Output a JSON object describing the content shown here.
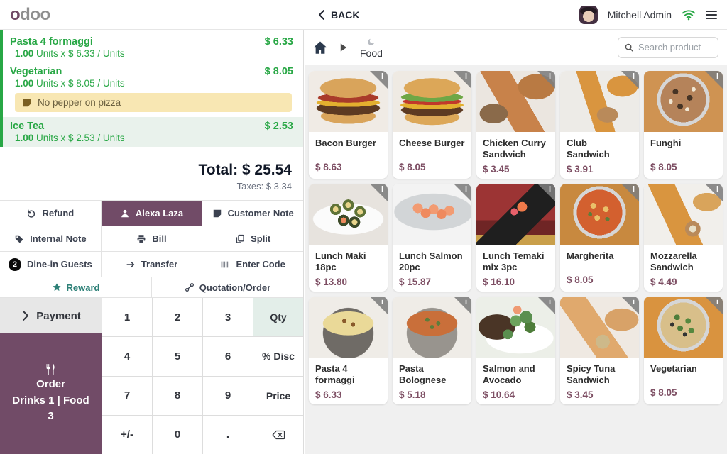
{
  "colors": {
    "brand_purple": "#714B67",
    "success_green": "#28a745",
    "reward_teal": "#2d8077",
    "price_maroon": "#7d4e63",
    "note_bg": "#f8e7b3"
  },
  "topbar": {
    "logo_first": "o",
    "logo_rest": "doo",
    "back_label": "BACK",
    "user_name": "Mitchell Admin"
  },
  "order": {
    "lines": [
      {
        "name": "Pasta 4 formaggi",
        "price": "$ 6.33",
        "qty": "1.00",
        "detail": "Units x $ 6.33 / Units",
        "selected": false
      },
      {
        "name": "Vegetarian",
        "price": "$ 8.05",
        "qty": "1.00",
        "detail": "Units x $ 8.05 / Units",
        "selected": false,
        "note": "No pepper on pizza"
      },
      {
        "name": "Ice Tea",
        "price": "$ 2.53",
        "qty": "1.00",
        "detail": "Units x $ 2.53 / Units",
        "selected": true
      }
    ],
    "total_label": "Total:",
    "total_value": "$ 25.54",
    "taxes_label": "Taxes:",
    "taxes_value": "$ 3.34"
  },
  "controls": [
    {
      "label": "Refund",
      "icon": "refund-icon"
    },
    {
      "label": "Alexa Laza",
      "icon": "customer-icon",
      "selected": true
    },
    {
      "label": "Customer Note",
      "icon": "note-icon"
    },
    {
      "label": "Internal Note",
      "icon": "tag-icon"
    },
    {
      "label": "Bill",
      "icon": "printer-icon"
    },
    {
      "label": "Split",
      "icon": "split-icon"
    },
    {
      "label": "Dine-in Guests",
      "badge": "2"
    },
    {
      "label": "Transfer",
      "icon": "arrow-right-icon"
    },
    {
      "label": "Enter Code",
      "icon": "barcode-icon"
    }
  ],
  "secondary": [
    {
      "label": "Reward",
      "icon": "star-icon",
      "accent": true
    },
    {
      "label": "Quotation/Order",
      "icon": "link-icon"
    }
  ],
  "payment_label": "Payment",
  "order_button": {
    "title": "Order",
    "subtitle": "Drinks 1 | Food 3"
  },
  "numpad": [
    {
      "label": "1"
    },
    {
      "label": "2"
    },
    {
      "label": "3"
    },
    {
      "label": "Qty",
      "active": true,
      "action": true
    },
    {
      "label": "4"
    },
    {
      "label": "5"
    },
    {
      "label": "6"
    },
    {
      "label": "% Disc",
      "action": true
    },
    {
      "label": "7"
    },
    {
      "label": "8"
    },
    {
      "label": "9"
    },
    {
      "label": "Price",
      "action": true
    },
    {
      "label": "+/-"
    },
    {
      "label": "0"
    },
    {
      "label": "."
    },
    {
      "label": "",
      "icon": "backspace-icon"
    }
  ],
  "breadcrumb": {
    "category": "Food"
  },
  "search": {
    "placeholder": "Search product"
  },
  "products": [
    {
      "name": "Bacon Burger",
      "price": "$ 8.63",
      "img": "burger-bacon"
    },
    {
      "name": "Cheese Burger",
      "price": "$ 8.05",
      "img": "burger-cheese"
    },
    {
      "name": "Chicken Curry Sandwich",
      "price": "$ 3.45",
      "img": "sandwich-curry"
    },
    {
      "name": "Club Sandwich",
      "price": "$ 3.91",
      "img": "baguette"
    },
    {
      "name": "Funghi",
      "price": "$ 8.05",
      "img": "pizza-funghi"
    },
    {
      "name": "Lunch Maki 18pc",
      "price": "$ 13.80",
      "img": "maki"
    },
    {
      "name": "Lunch Salmon 20pc",
      "price": "$ 15.87",
      "img": "salmon"
    },
    {
      "name": "Lunch Temaki mix 3pc",
      "price": "$ 16.10",
      "img": "temaki"
    },
    {
      "name": "Margherita",
      "price": "$ 8.05",
      "img": "pizza-margherita"
    },
    {
      "name": "Mozzarella Sandwich",
      "price": "$ 4.49",
      "img": "baguette2"
    },
    {
      "name": "Pasta 4 formaggi",
      "price": "$ 6.33",
      "img": "bowl-formaggi"
    },
    {
      "name": "Pasta Bolognese",
      "price": "$ 5.18",
      "img": "bowl-bolognese"
    },
    {
      "name": "Salmon and Avocado",
      "price": "$ 10.64",
      "img": "toast"
    },
    {
      "name": "Spicy Tuna Sandwich",
      "price": "$ 3.45",
      "img": "sandwich-tuna"
    },
    {
      "name": "Vegetarian",
      "price": "$ 8.05",
      "img": "pizza-veg"
    }
  ]
}
